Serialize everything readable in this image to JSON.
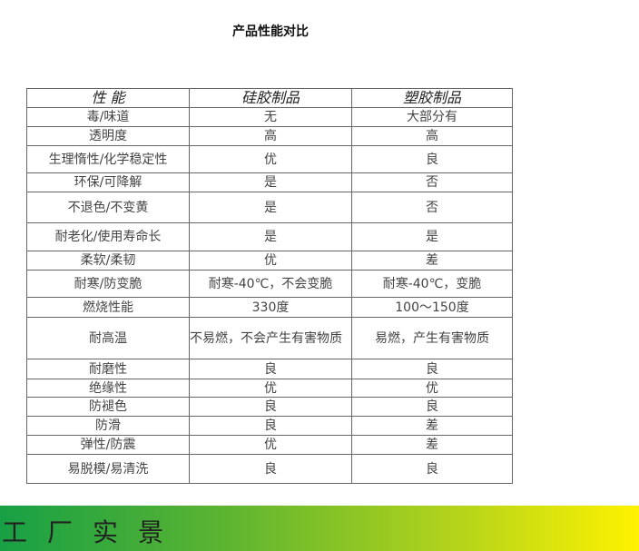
{
  "title": "产品性能对比",
  "headers": [
    "性 能",
    "硅胶制品",
    "塑胶制品"
  ],
  "rows": [
    [
      "毒/味道",
      "无",
      "大部分有"
    ],
    [
      "透明度",
      "高",
      "高"
    ],
    [
      "生理惰性/化学稳定性",
      "优",
      "良"
    ],
    [
      "环保/可降解",
      "是",
      "否"
    ],
    [
      "不退色/不变黄",
      "是",
      "否"
    ],
    [
      "耐老化/使用寿命长",
      "是",
      "是"
    ],
    [
      "柔软/柔韧",
      "优",
      "差"
    ],
    [
      "耐寒/防变脆",
      "耐寒-40℃，不会变脆",
      "耐寒-40℃，变脆"
    ],
    [
      "燃烧性能",
      "330度",
      "100～150度"
    ],
    [
      "耐高温",
      "不易燃，不会产生有害物质",
      "易燃，产生有害物质"
    ],
    [
      "耐磨性",
      "良",
      "良"
    ],
    [
      "绝缘性",
      "优",
      "优"
    ],
    [
      "防褪色",
      "良",
      "良"
    ],
    [
      "防滑",
      "良",
      "差"
    ],
    [
      "弹性/防震",
      "优",
      "差"
    ],
    [
      "易脱模/易清洗",
      "良",
      "良"
    ]
  ],
  "banner": "工厂实景"
}
